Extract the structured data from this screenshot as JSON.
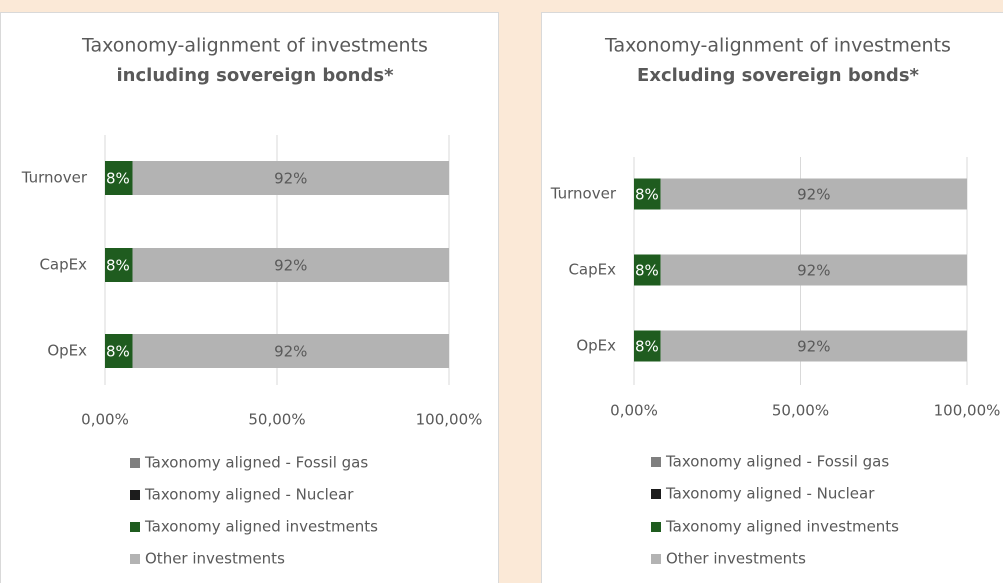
{
  "chart_data": [
    {
      "type": "bar",
      "orientation": "horizontal",
      "stacked": true,
      "title": "Taxonomy-alignment of investments",
      "subtitle": "including sovereign bonds*",
      "categories": [
        "Turnover",
        "CapEx",
        "OpEx"
      ],
      "series": [
        {
          "name": "Taxonomy aligned - Fossil gas",
          "color": "#7f7f7f",
          "values": [
            0,
            0,
            0
          ]
        },
        {
          "name": "Taxonomy aligned - Nuclear",
          "color": "#1c1c1c",
          "values": [
            0,
            0,
            0
          ]
        },
        {
          "name": "Taxonomy aligned investments",
          "color": "#1f5c1f",
          "values": [
            8,
            8,
            8
          ],
          "value_labels": [
            "8%",
            "8%",
            "8%"
          ]
        },
        {
          "name": "Other investments",
          "color": "#b3b3b3",
          "values": [
            92,
            92,
            92
          ],
          "value_labels": [
            "92%",
            "92%",
            "92%"
          ]
        }
      ],
      "xlim": [
        0,
        100
      ],
      "xticks": [
        {
          "value": 0,
          "label": "0,00%"
        },
        {
          "value": 50,
          "label": "50,00%"
        },
        {
          "value": 100,
          "label": "100,00%"
        }
      ],
      "grid": true,
      "legend": "bottom"
    },
    {
      "type": "bar",
      "orientation": "horizontal",
      "stacked": true,
      "title": "Taxonomy-alignment of investments",
      "subtitle": "Excluding sovereign bonds*",
      "categories": [
        "Turnover",
        "CapEx",
        "OpEx"
      ],
      "series": [
        {
          "name": "Taxonomy aligned - Fossil gas",
          "color": "#7f7f7f",
          "values": [
            0,
            0,
            0
          ]
        },
        {
          "name": "Taxonomy aligned - Nuclear",
          "color": "#1c1c1c",
          "values": [
            0,
            0,
            0
          ]
        },
        {
          "name": "Taxonomy aligned investments",
          "color": "#1f5c1f",
          "values": [
            8,
            8,
            8
          ],
          "value_labels": [
            "8%",
            "8%",
            "8%"
          ]
        },
        {
          "name": "Other investments",
          "color": "#b3b3b3",
          "values": [
            92,
            92,
            92
          ],
          "value_labels": [
            "92%",
            "92%",
            "92%"
          ]
        }
      ],
      "xlim": [
        0,
        100
      ],
      "xticks": [
        {
          "value": 0,
          "label": "0,00%"
        },
        {
          "value": 50,
          "label": "50,00%"
        },
        {
          "value": 100,
          "label": "100,00%"
        }
      ],
      "grid": true,
      "legend": "bottom"
    }
  ]
}
